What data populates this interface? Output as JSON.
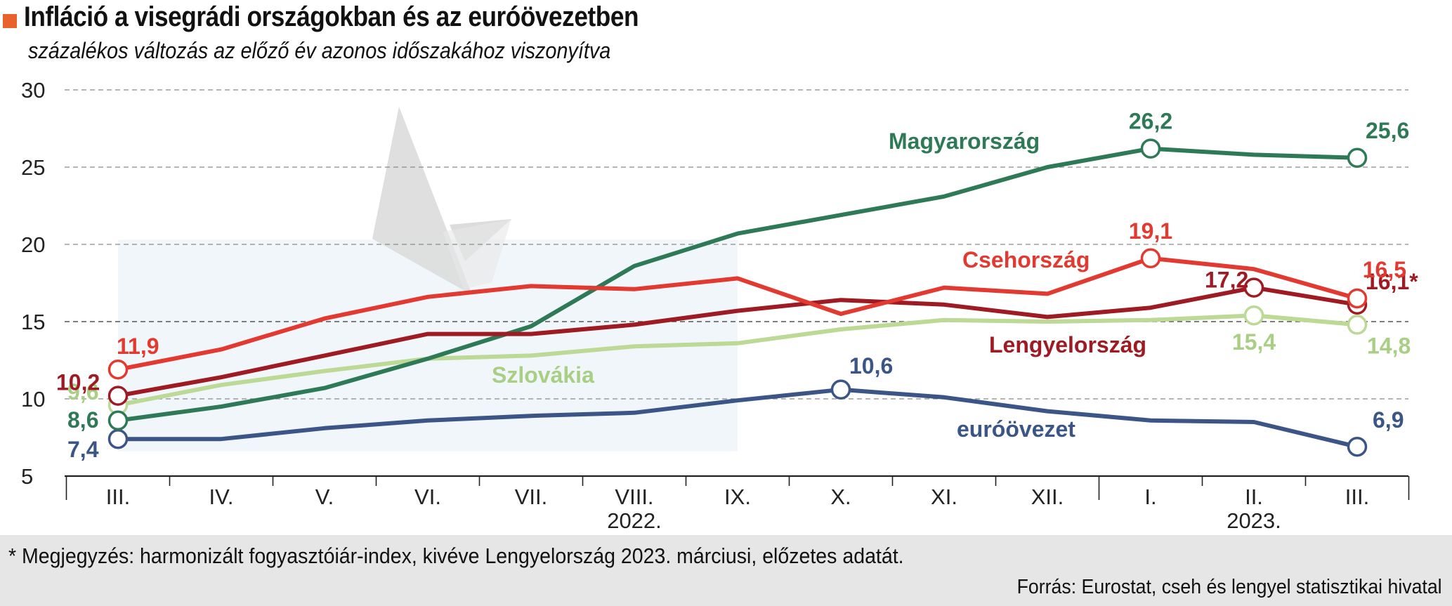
{
  "header": {
    "title": "Infláció a visegrádi országokban és az euróövezetben",
    "subtitle": "százalékos változás az előző év azonos időszakához viszonyítva"
  },
  "footer": {
    "note": "* Megjegyzés: harmonizált fogyasztóiár-index, kivéve Lengyelország 2023. márciusi, előzetes adatát.",
    "source": "Forrás: Eurostat, cseh és lengyel statisztikai hivatal"
  },
  "colors": {
    "accent": "#e8632b",
    "hungary": "#2e7a57",
    "czechia": "#e23a30",
    "poland": "#9e1b24",
    "slovakia": "#bcd995",
    "slovakia_label": "#a9cf85",
    "eurozone": "#3b5586",
    "highlight": "#f1f6fb"
  },
  "chart_data": {
    "type": "line",
    "title": "Infláció a visegrádi országokban és az euróövezetben",
    "subtitle": "százalékos változás az előző év azonos időszakához viszonyítva",
    "categories": [
      "III.",
      "IV.",
      "V.",
      "VI.",
      "VII.",
      "VIII.",
      "IX.",
      "X.",
      "XI.",
      "XII.",
      "I.",
      "II.",
      "III."
    ],
    "year_labels": [
      {
        "text": "2022.",
        "category_index": 5
      },
      {
        "text": "2023.",
        "category_index": 11
      }
    ],
    "ylim": [
      5,
      30
    ],
    "yticks": [
      5,
      10,
      15,
      20,
      25,
      30
    ],
    "grid": true,
    "series": [
      {
        "name": "Magyarország",
        "key": "hungary",
        "values": [
          8.6,
          9.5,
          10.7,
          12.6,
          14.7,
          18.6,
          20.7,
          21.9,
          23.1,
          25.0,
          26.2,
          25.8,
          25.6
        ],
        "labels": [
          {
            "index": 0,
            "text": "8,6"
          },
          {
            "index": 10,
            "text": "26,2"
          },
          {
            "index": 12,
            "text": "25,6"
          }
        ]
      },
      {
        "name": "Csehország",
        "key": "czechia",
        "values": [
          11.9,
          13.2,
          15.2,
          16.6,
          17.3,
          17.1,
          17.8,
          15.5,
          17.2,
          16.8,
          19.1,
          18.4,
          16.5
        ],
        "labels": [
          {
            "index": 0,
            "text": "11,9"
          },
          {
            "index": 10,
            "text": "19,1"
          },
          {
            "index": 12,
            "text": "16,5"
          }
        ]
      },
      {
        "name": "Lengyelország",
        "key": "poland",
        "values": [
          10.2,
          11.4,
          12.8,
          14.2,
          14.2,
          14.8,
          15.7,
          16.4,
          16.1,
          15.3,
          15.9,
          17.2,
          16.1
        ],
        "labels": [
          {
            "index": 0,
            "text": "10,2"
          },
          {
            "index": 11,
            "text": "17,2"
          },
          {
            "index": 12,
            "text": "16,1*"
          }
        ]
      },
      {
        "name": "Szlovákia",
        "key": "slovakia",
        "values": [
          9.6,
          10.9,
          11.8,
          12.6,
          12.8,
          13.4,
          13.6,
          14.5,
          15.1,
          15.0,
          15.1,
          15.4,
          14.8
        ],
        "labels": [
          {
            "index": 0,
            "text": "9,6"
          },
          {
            "index": 11,
            "text": "15,4"
          },
          {
            "index": 12,
            "text": "14,8"
          }
        ]
      },
      {
        "name": "euróövezet",
        "key": "eurozone",
        "values": [
          7.4,
          7.4,
          8.1,
          8.6,
          8.9,
          9.1,
          9.9,
          10.6,
          10.1,
          9.2,
          8.6,
          8.5,
          6.9
        ],
        "labels": [
          {
            "index": 0,
            "text": "7,4"
          },
          {
            "index": 7,
            "text": "10,6"
          },
          {
            "index": 12,
            "text": "6,9"
          }
        ]
      }
    ]
  }
}
